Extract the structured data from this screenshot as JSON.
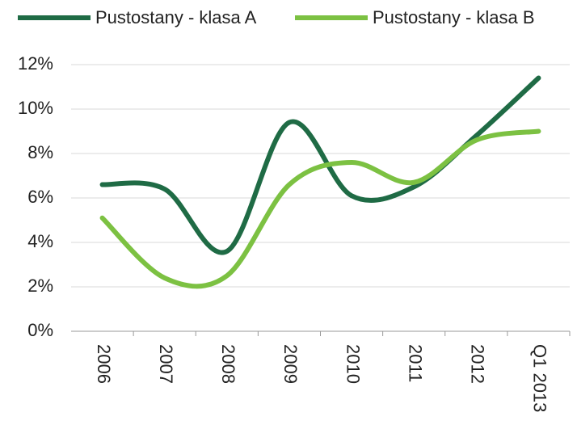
{
  "chart_data": {
    "type": "line",
    "categories": [
      "2006",
      "2007",
      "2008",
      "2009",
      "2010",
      "2011",
      "2012",
      "Q1 2013"
    ],
    "series": [
      {
        "name": "Pustostany - klasa A",
        "color": "#1f6b45",
        "values": [
          6.6,
          6.4,
          3.6,
          9.4,
          6.1,
          6.5,
          8.8,
          11.4
        ]
      },
      {
        "name": "Pustostany - klasa B",
        "color": "#7cc142",
        "values": [
          5.1,
          2.4,
          2.5,
          6.6,
          7.6,
          6.7,
          8.6,
          9.0
        ]
      }
    ],
    "ylim": [
      0,
      12
    ],
    "yticks": [
      {
        "value": 0,
        "label": "0%"
      },
      {
        "value": 2,
        "label": "2%"
      },
      {
        "value": 4,
        "label": "4%"
      },
      {
        "value": 6,
        "label": "6%"
      },
      {
        "value": 8,
        "label": "8%"
      },
      {
        "value": 10,
        "label": "10%"
      },
      {
        "value": 12,
        "label": "12%"
      }
    ],
    "grid": true,
    "legend": "top"
  }
}
